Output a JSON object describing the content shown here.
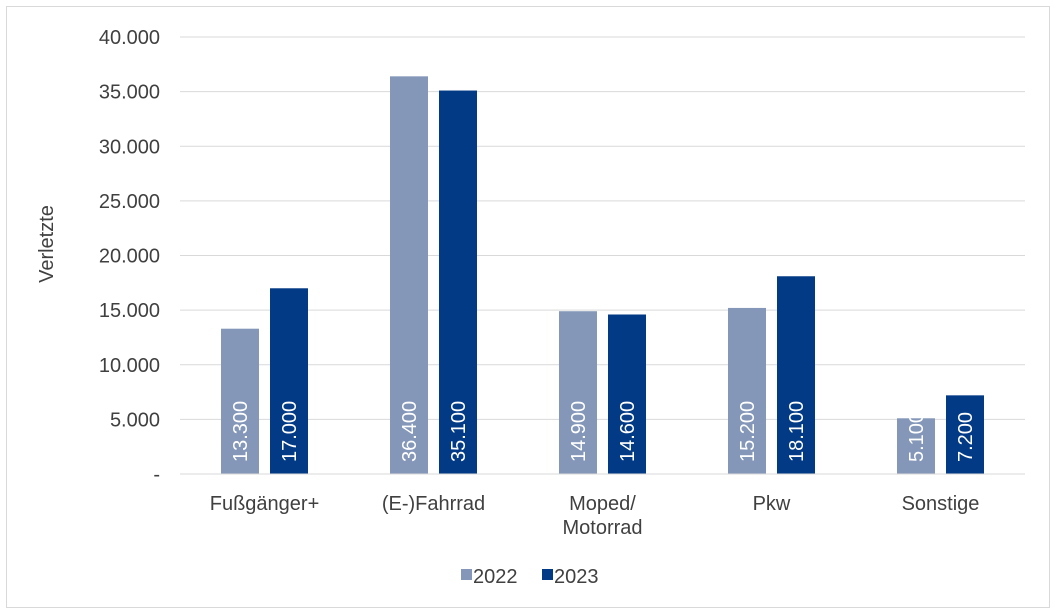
{
  "chart_data": {
    "type": "bar",
    "title": "",
    "xlabel": "",
    "ylabel": "Verletzte",
    "ylim": [
      0,
      40000
    ],
    "yticks": [
      {
        "value": 0,
        "label": "-"
      },
      {
        "value": 5000,
        "label": "5.000"
      },
      {
        "value": 10000,
        "label": "10.000"
      },
      {
        "value": 15000,
        "label": "15.000"
      },
      {
        "value": 20000,
        "label": "20.000"
      },
      {
        "value": 25000,
        "label": "25.000"
      },
      {
        "value": 30000,
        "label": "30.000"
      },
      {
        "value": 35000,
        "label": "35.000"
      },
      {
        "value": 40000,
        "label": "40.000"
      }
    ],
    "grid": true,
    "legend_position": "bottom",
    "categories": [
      [
        "Fußgänger+"
      ],
      [
        "(E-)Fahrrad"
      ],
      [
        "Moped/",
        "Motorrad"
      ],
      [
        "Pkw"
      ],
      [
        "Sonstige"
      ]
    ],
    "series": [
      {
        "name": "2022",
        "color": "#8497b9",
        "values": [
          13300,
          36400,
          14900,
          15200,
          5100
        ],
        "labels": [
          "13.300",
          "36.400",
          "14.900",
          "15.200",
          "5.100"
        ]
      },
      {
        "name": "2023",
        "color": "#033a85",
        "values": [
          17000,
          35100,
          14600,
          18100,
          7200
        ],
        "labels": [
          "17.000",
          "35.100",
          "14.600",
          "18.100",
          "7.200"
        ]
      }
    ]
  }
}
